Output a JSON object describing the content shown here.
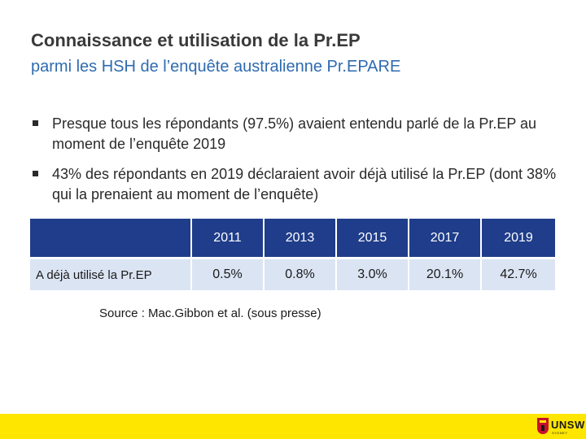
{
  "slide": {
    "title": "Connaissance et utilisation de la Pr.EP",
    "subtitle": "parmi les HSH de l’enquête australienne Pr.EPARE"
  },
  "bullets": [
    "Presque tous les répondants (97.5%) avaient entendu parlé de la Pr.EP au moment de l’enquête 2019",
    "43% des répondants en 2019 déclaraient avoir déjà utilisé la Pr.EP (dont 38% qui la prenaient au moment de l’enquête)"
  ],
  "table": {
    "corner": "",
    "years": [
      "2011",
      "2013",
      "2015",
      "2017",
      "2019"
    ],
    "row_label": "A déjà utilisé la Pr.EP",
    "values": [
      "0.5%",
      "0.8%",
      "3.0%",
      "20.1%",
      "42.7%"
    ]
  },
  "source": "Source : Mac.Gibbon et al. (sous presse)",
  "logo": {
    "text": "UNSW",
    "subtext": "SYDNEY"
  },
  "colors": {
    "header_blue": "#1f3d8a",
    "cell_blue": "#dbe4f3",
    "subtitle_blue": "#2e6bb0",
    "footer_yellow": "#ffe600"
  }
}
